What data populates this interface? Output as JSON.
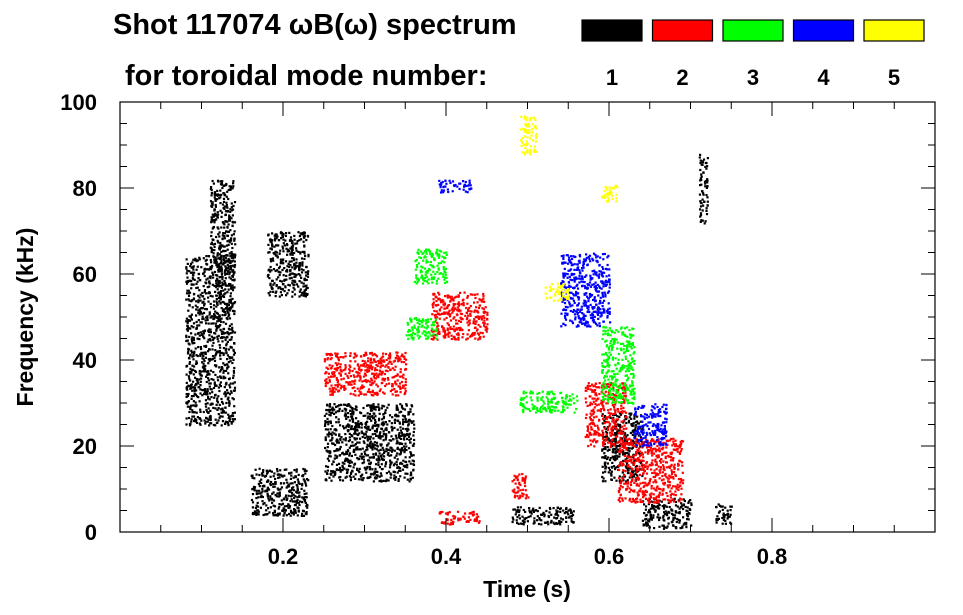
{
  "chart_data": {
    "type": "scatter",
    "title_line1": "Shot 117074 ωB(ω) spectrum",
    "title_line2": "for toroidal mode number:",
    "xlabel": "Time (s)",
    "ylabel": "Frequency (kHz)",
    "xlim": [
      0.0,
      1.0
    ],
    "ylim": [
      0,
      100
    ],
    "x_ticks": [
      0.2,
      0.4,
      0.6,
      0.8
    ],
    "x_tick_labels": [
      "0.2",
      "0.4",
      "0.6",
      "0.8"
    ],
    "y_ticks": [
      0,
      20,
      40,
      60,
      80,
      100
    ],
    "y_tick_labels": [
      "0",
      "20",
      "40",
      "60",
      "80",
      "100"
    ],
    "legend": [
      {
        "label": "1",
        "color": "#000000"
      },
      {
        "label": "2",
        "color": "#ff0000"
      },
      {
        "label": "3",
        "color": "#00ff00"
      },
      {
        "label": "4",
        "color": "#0000ff"
      },
      {
        "label": "5",
        "color": "#ffff00"
      }
    ],
    "series": [
      {
        "name": "n=1",
        "color": "#000000",
        "blobs": [
          {
            "t": [
              0.08,
              0.14
            ],
            "f": [
              25,
              65
            ]
          },
          {
            "t": [
              0.11,
              0.14
            ],
            "f": [
              60,
              82
            ]
          },
          {
            "t": [
              0.16,
              0.23
            ],
            "f": [
              4,
              15
            ]
          },
          {
            "t": [
              0.18,
              0.23
            ],
            "f": [
              55,
              70
            ]
          },
          {
            "t": [
              0.25,
              0.36
            ],
            "f": [
              12,
              30
            ]
          },
          {
            "t": [
              0.48,
              0.56
            ],
            "f": [
              2,
              6
            ]
          },
          {
            "t": [
              0.59,
              0.64
            ],
            "f": [
              12,
              28
            ]
          },
          {
            "t": [
              0.64,
              0.7
            ],
            "f": [
              1,
              8
            ]
          },
          {
            "t": [
              0.71,
              0.72
            ],
            "f": [
              72,
              88
            ]
          },
          {
            "t": [
              0.73,
              0.75
            ],
            "f": [
              2,
              7
            ]
          }
        ]
      },
      {
        "name": "n=2",
        "color": "#ff0000",
        "blobs": [
          {
            "t": [
              0.25,
              0.35
            ],
            "f": [
              32,
              42
            ]
          },
          {
            "t": [
              0.38,
              0.45
            ],
            "f": [
              45,
              56
            ]
          },
          {
            "t": [
              0.39,
              0.44
            ],
            "f": [
              2,
              5
            ]
          },
          {
            "t": [
              0.57,
              0.62
            ],
            "f": [
              20,
              35
            ]
          },
          {
            "t": [
              0.61,
              0.69
            ],
            "f": [
              7,
              22
            ]
          },
          {
            "t": [
              0.48,
              0.5
            ],
            "f": [
              8,
              14
            ]
          }
        ]
      },
      {
        "name": "n=3",
        "color": "#00ff00",
        "blobs": [
          {
            "t": [
              0.35,
              0.39
            ],
            "f": [
              45,
              50
            ]
          },
          {
            "t": [
              0.36,
              0.4
            ],
            "f": [
              58,
              66
            ]
          },
          {
            "t": [
              0.49,
              0.56
            ],
            "f": [
              28,
              33
            ]
          },
          {
            "t": [
              0.59,
              0.63
            ],
            "f": [
              30,
              48
            ]
          }
        ]
      },
      {
        "name": "n=4",
        "color": "#0000ff",
        "blobs": [
          {
            "t": [
              0.39,
              0.43
            ],
            "f": [
              79,
              82
            ]
          },
          {
            "t": [
              0.54,
              0.6
            ],
            "f": [
              48,
              65
            ]
          },
          {
            "t": [
              0.63,
              0.67
            ],
            "f": [
              20,
              30
            ]
          }
        ]
      },
      {
        "name": "n=5",
        "color": "#ffff00",
        "blobs": [
          {
            "t": [
              0.49,
              0.51
            ],
            "f": [
              88,
              97
            ]
          },
          {
            "t": [
              0.59,
              0.61
            ],
            "f": [
              77,
              81
            ]
          },
          {
            "t": [
              0.52,
              0.55
            ],
            "f": [
              54,
              58
            ]
          }
        ]
      }
    ]
  }
}
